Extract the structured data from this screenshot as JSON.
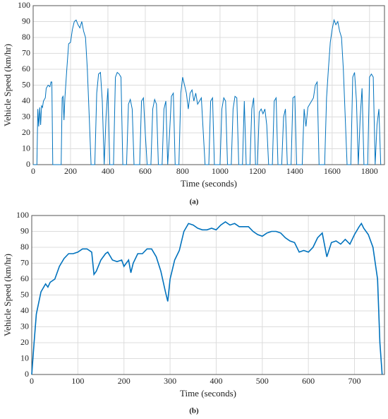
{
  "chart_data": [
    {
      "type": "line",
      "caption": "(a)",
      "xlabel": "Time (seconds)",
      "ylabel": "Vehicle Speed (km/hr)",
      "x": [
        0,
        20,
        25,
        30,
        35,
        40,
        45,
        50,
        55,
        65,
        70,
        80,
        90,
        95,
        100,
        105,
        150,
        155,
        160,
        165,
        170,
        180,
        190,
        200,
        210,
        220,
        230,
        240,
        250,
        260,
        270,
        280,
        290,
        300,
        310,
        330,
        340,
        350,
        360,
        370,
        380,
        390,
        400,
        410,
        430,
        440,
        450,
        460,
        470,
        480,
        500,
        510,
        520,
        530,
        540,
        570,
        580,
        590,
        600,
        610,
        630,
        640,
        650,
        660,
        670,
        690,
        700,
        710,
        720,
        730,
        740,
        750,
        760,
        780,
        790,
        800,
        810,
        820,
        830,
        840,
        850,
        860,
        870,
        880,
        890,
        900,
        920,
        940,
        950,
        960,
        970,
        1000,
        1010,
        1020,
        1030,
        1040,
        1060,
        1070,
        1080,
        1090,
        1100,
        1120,
        1130,
        1140,
        1160,
        1170,
        1180,
        1190,
        1200,
        1210,
        1220,
        1230,
        1240,
        1250,
        1260,
        1280,
        1290,
        1300,
        1310,
        1330,
        1340,
        1350,
        1360,
        1380,
        1390,
        1400,
        1410,
        1440,
        1450,
        1460,
        1470,
        1480,
        1490,
        1500,
        1510,
        1520,
        1530,
        1560,
        1570,
        1580,
        1590,
        1600,
        1610,
        1620,
        1630,
        1640,
        1650,
        1660,
        1680,
        1700,
        1710,
        1720,
        1730,
        1740,
        1750,
        1760,
        1770,
        1790,
        1800,
        1810,
        1820,
        1830,
        1840,
        1850,
        1860
      ],
      "series": [
        {
          "name": "speed",
          "color": "#0072bd",
          "values": [
            0,
            0,
            35,
            24,
            36,
            25,
            37,
            36,
            40,
            42,
            48,
            50,
            49,
            52,
            52,
            0,
            0,
            42,
            43,
            28,
            42,
            60,
            76,
            77,
            85,
            90,
            91,
            88,
            86,
            90,
            84,
            80,
            60,
            30,
            0,
            0,
            45,
            57,
            58,
            40,
            0,
            30,
            48,
            0,
            0,
            55,
            58,
            57,
            55,
            0,
            0,
            38,
            41,
            35,
            0,
            0,
            40,
            42,
            20,
            0,
            0,
            35,
            41,
            38,
            0,
            0,
            35,
            40,
            0,
            20,
            43,
            45,
            0,
            0,
            45,
            55,
            50,
            45,
            35,
            45,
            47,
            40,
            45,
            38,
            40,
            42,
            0,
            0,
            40,
            42,
            0,
            0,
            35,
            42,
            40,
            0,
            0,
            35,
            43,
            42,
            0,
            0,
            40,
            0,
            0,
            35,
            42,
            0,
            0,
            33,
            35,
            32,
            35,
            25,
            0,
            0,
            40,
            42,
            0,
            0,
            30,
            35,
            0,
            0,
            42,
            43,
            0,
            0,
            35,
            24,
            36,
            38,
            40,
            42,
            50,
            52,
            0,
            0,
            42,
            60,
            77,
            85,
            91,
            88,
            90,
            84,
            80,
            60,
            0,
            0,
            55,
            58,
            40,
            0,
            30,
            48,
            0,
            0,
            55,
            57,
            55,
            0,
            25,
            35,
            0
          ]
        }
      ],
      "xlim": [
        0,
        1880
      ],
      "ylim": [
        0,
        100
      ],
      "xticks": [
        0,
        200,
        400,
        600,
        800,
        1000,
        1200,
        1400,
        1600,
        1800
      ],
      "yticks": [
        0,
        10,
        20,
        30,
        40,
        50,
        60,
        70,
        80,
        90,
        100
      ],
      "grid": true
    },
    {
      "type": "line",
      "caption": "(b)",
      "xlabel": "Time (seconds)",
      "ylabel": "Vehicle Speed (km/hr)",
      "x": [
        0,
        5,
        10,
        20,
        30,
        35,
        40,
        50,
        60,
        70,
        80,
        90,
        100,
        110,
        120,
        130,
        135,
        140,
        150,
        160,
        165,
        175,
        185,
        195,
        200,
        210,
        215,
        220,
        230,
        240,
        250,
        260,
        270,
        280,
        290,
        295,
        300,
        310,
        320,
        330,
        340,
        350,
        360,
        370,
        380,
        390,
        400,
        410,
        420,
        430,
        440,
        450,
        460,
        470,
        480,
        490,
        500,
        510,
        520,
        530,
        540,
        550,
        560,
        570,
        580,
        590,
        600,
        610,
        620,
        630,
        640,
        650,
        660,
        670,
        680,
        690,
        700,
        710,
        715,
        720,
        730,
        740,
        750,
        755,
        760
      ],
      "series": [
        {
          "name": "speed",
          "color": "#0072bd",
          "values": [
            0,
            20,
            38,
            52,
            57,
            55,
            58,
            60,
            68,
            73,
            76,
            76,
            77,
            79,
            79,
            77,
            63,
            65,
            72,
            76,
            77,
            72,
            71,
            72,
            68,
            72,
            64,
            70,
            76,
            76,
            79,
            79,
            74,
            65,
            52,
            46,
            60,
            72,
            78,
            90,
            95,
            94,
            92,
            91,
            91,
            92,
            91,
            94,
            96,
            94,
            95,
            93,
            93,
            93,
            90,
            88,
            87,
            89,
            90,
            90,
            89,
            86,
            84,
            83,
            77,
            78,
            77,
            80,
            86,
            89,
            74,
            83,
            84,
            82,
            85,
            82,
            88,
            93,
            95,
            92,
            88,
            80,
            60,
            20,
            0
          ]
        }
      ],
      "xlim": [
        0,
        765
      ],
      "ylim": [
        0,
        100
      ],
      "xticks": [
        0,
        100,
        200,
        300,
        400,
        500,
        600,
        700
      ],
      "yticks": [
        0,
        10,
        20,
        30,
        40,
        50,
        60,
        70,
        80,
        90,
        100
      ],
      "grid": true
    }
  ]
}
